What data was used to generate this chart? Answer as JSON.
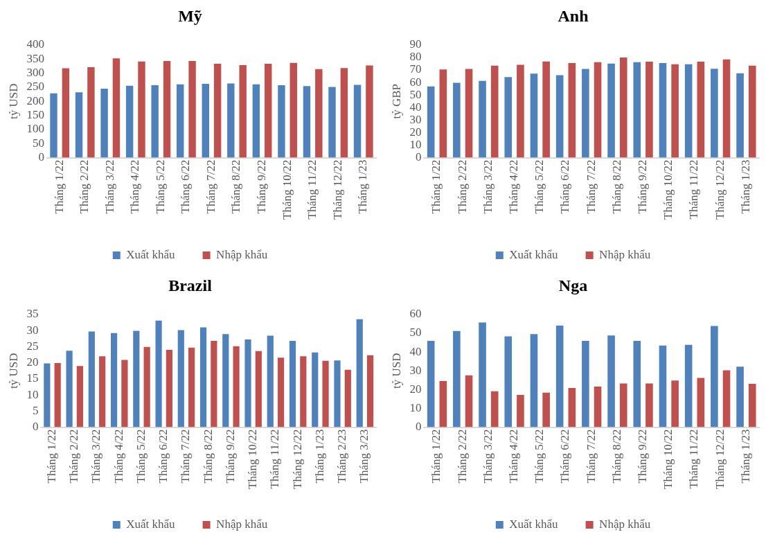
{
  "chart_data": [
    {
      "type": "bar",
      "title": "Mỹ",
      "ylabel": "tỷ USD",
      "categories": [
        "Tháng 1/22",
        "Tháng 2/22",
        "Tháng 3/22",
        "Tháng 4/22",
        "Tháng 5/22",
        "Tháng 6/22",
        "Tháng 7/22",
        "Tháng 8/22",
        "Tháng 9/22",
        "Tháng 10/22",
        "Tháng 11/22",
        "Tháng 12/22",
        "Tháng 1/23"
      ],
      "series": [
        {
          "name": "Xuất khẩu",
          "color": "#4f81bd",
          "values": [
            228,
            232,
            245,
            255,
            257,
            260,
            262,
            263,
            260,
            257,
            254,
            251,
            258
          ]
        },
        {
          "name": "Nhập khẩu",
          "color": "#c0504d",
          "values": [
            317,
            321,
            352,
            341,
            343,
            343,
            333,
            328,
            333,
            336,
            314,
            318,
            327
          ]
        }
      ],
      "ylim": [
        0,
        400
      ],
      "yticks": [
        0,
        50,
        100,
        150,
        200,
        250,
        300,
        350,
        400
      ],
      "grid": false,
      "legend": "bottom"
    },
    {
      "type": "bar",
      "title": "Anh",
      "ylabel": "tỷ GBP",
      "categories": [
        "Tháng 1/22",
        "Tháng 2/22",
        "Tháng 3/22",
        "Tháng 4/22",
        "Tháng 5/22",
        "Tháng 6/22",
        "Tháng 7/22",
        "Tháng 8/22",
        "Tháng 9/22",
        "Tháng 10/22",
        "Tháng 11/22",
        "Tháng 12/22",
        "Tháng 1/23"
      ],
      "series": [
        {
          "name": "Xuất khẩu",
          "color": "#4f81bd",
          "values": [
            56.8,
            59.8,
            61.3,
            64.3,
            67.1,
            65.8,
            70.8,
            75.1,
            76.2,
            75.5,
            74.5,
            71,
            67.3
          ]
        },
        {
          "name": "Nhập khẩu",
          "color": "#c0504d",
          "values": [
            70.4,
            70.8,
            73.4,
            74.2,
            76.8,
            75.5,
            76.2,
            79.9,
            76.6,
            74.5,
            76.6,
            78.4,
            73.4
          ]
        }
      ],
      "ylim": [
        0,
        90
      ],
      "yticks": [
        0,
        10,
        20,
        30,
        40,
        50,
        60,
        70,
        80,
        90
      ],
      "grid": false,
      "legend": "bottom"
    },
    {
      "type": "bar",
      "title": "Brazil",
      "ylabel": "tỷ USD",
      "categories": [
        "Tháng 1/22",
        "Tháng 2/22",
        "Tháng 3/22",
        "Tháng 4/22",
        "Tháng 5/22",
        "Tháng 6/22",
        "Tháng 7/22",
        "Tháng 8/22",
        "Tháng 9/22",
        "Tháng 10/22",
        "Tháng 11/22",
        "Tháng 12/22",
        "Tháng 1/23",
        "Tháng 2/23",
        "Tháng 3/23"
      ],
      "series": [
        {
          "name": "Xuất khẩu",
          "color": "#4f81bd",
          "values": [
            19.8,
            23.7,
            29.7,
            29.2,
            29.9,
            33.1,
            30.1,
            31,
            28.9,
            27.2,
            28.4,
            26.8,
            23.2,
            20.7,
            33.5
          ]
        },
        {
          "name": "Nhập khẩu",
          "color": "#c0504d",
          "values": [
            19.9,
            19,
            22,
            20.9,
            24.9,
            24,
            24.7,
            26.8,
            25.1,
            23.6,
            21.6,
            22,
            20.6,
            17.8,
            22.3
          ]
        }
      ],
      "ylim": [
        0,
        35
      ],
      "yticks": [
        0,
        5,
        10,
        15,
        20,
        25,
        30,
        35
      ],
      "grid": false,
      "legend": "bottom"
    },
    {
      "type": "bar",
      "title": "Nga",
      "ylabel": "tỷ USD",
      "categories": [
        "Tháng 1/22",
        "Tháng 2/22",
        "Tháng 3/22",
        "Tháng 4/22",
        "Tháng 5/22",
        "Tháng 6/22",
        "Tháng 7/22",
        "Tháng 8/22",
        "Tháng 9/22",
        "Tháng 10/22",
        "Tháng 11/22",
        "Tháng 12/22",
        "Tháng 1/23"
      ],
      "series": [
        {
          "name": "Xuất khẩu",
          "color": "#4f81bd",
          "values": [
            45.9,
            51.2,
            55.7,
            48.3,
            49.5,
            54,
            45.9,
            48.8,
            45.9,
            43.4,
            43.8,
            53.8,
            32.2
          ]
        },
        {
          "name": "Nhập khẩu",
          "color": "#c0504d",
          "values": [
            24.5,
            27.6,
            19.1,
            17.2,
            18.4,
            20.9,
            21.6,
            23.3,
            23.3,
            24.8,
            26.2,
            30.3,
            23.1
          ]
        }
      ],
      "ylim": [
        0,
        60
      ],
      "yticks": [
        0,
        10,
        20,
        30,
        40,
        50,
        60
      ],
      "grid": false,
      "legend": "bottom"
    }
  ]
}
